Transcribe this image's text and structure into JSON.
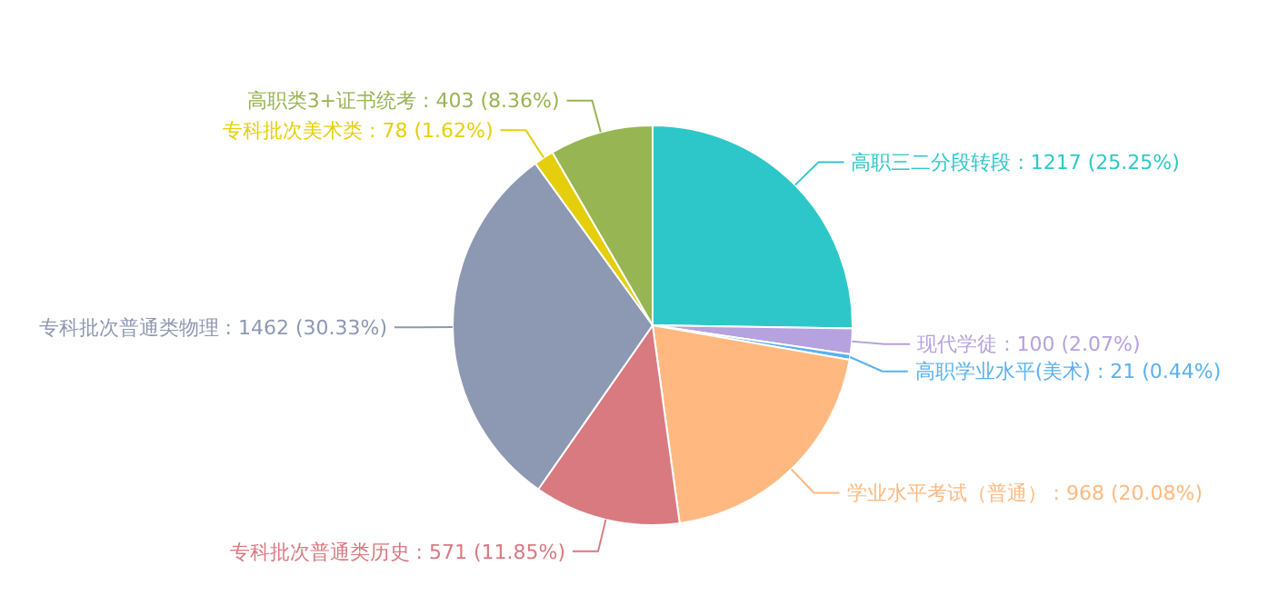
{
  "chart_data": {
    "type": "pie",
    "categories": [
      "高职三二分段转段",
      "现代学徒",
      "高职学业水平(美术)",
      "学业水平考试（普通）",
      "专科批次普通类历史",
      "专科批次普通类物理",
      "专科批次美术类",
      "高职类3+证书统考"
    ],
    "values": [
      1217,
      100,
      21,
      968,
      571,
      1462,
      78,
      403
    ],
    "value_labels": [
      "1217 (25.25%)",
      "100 (2.07%)",
      "21 (0.44%)",
      "968 (20.08%)",
      "571 (11.85%)",
      "1462 (30.33%)",
      "78 (1.62%)",
      "403 (8.36%)"
    ],
    "colors": [
      "#2ec7c9",
      "#b6a2de",
      "#5ab1ef",
      "#ffb980",
      "#d87a80",
      "#8d98b3",
      "#e5cf0d",
      "#97b552"
    ],
    "legend": false
  }
}
